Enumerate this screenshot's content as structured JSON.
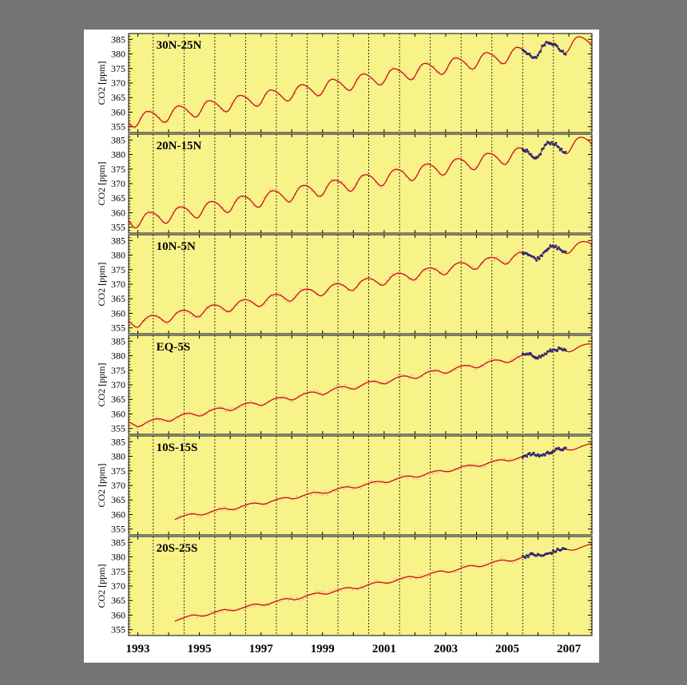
{
  "chart_data": {
    "type": "line",
    "x_range": [
      1992.7,
      2007.75
    ],
    "x_tick_labels": [
      "1993",
      "1995",
      "1997",
      "1999",
      "2001",
      "2003",
      "2005",
      "2007"
    ],
    "x_tick_values": [
      1993,
      1995,
      1997,
      1999,
      2001,
      2003,
      2005,
      2007
    ],
    "grid_x_values": [
      1993.5,
      1994.5,
      1995.5,
      1996.5,
      1997.5,
      1998.5,
      1999.5,
      2000.5,
      2001.5,
      2002.5,
      2003.5,
      2004.5,
      2005.5,
      2006.5
    ],
    "grid": "vertical dotted lines at mid-year",
    "ylabel": "CO2 [ppm]",
    "y_tick_labels": [
      "355",
      "360",
      "365",
      "370",
      "375",
      "380",
      "385"
    ],
    "y_tick_values": [
      355,
      360,
      365,
      370,
      375,
      380,
      385
    ],
    "ylim": [
      353,
      387
    ],
    "colors": {
      "panel_background": "#f8f388",
      "fit_line": "#cc1111",
      "observations": "#f4b0a0",
      "recent_observations": "#2b2b7a"
    },
    "panels": [
      {
        "label": "30N-25N",
        "start_year": 1992.7,
        "fit": {
          "trend_points": [
            [
              1992.7,
              357.2
            ],
            [
              1993.0,
              357.3
            ],
            [
              2007.7,
              384.2
            ]
          ],
          "seasonal_amplitude": 2.4,
          "phase": 0.1
        }
      },
      {
        "label": "20N-15N",
        "start_year": 1992.7,
        "fit": {
          "trend_points": [
            [
              1992.7,
              357.5
            ],
            [
              1993.0,
              357.1
            ],
            [
              2007.7,
              384.1
            ]
          ],
          "seasonal_amplitude": 2.4,
          "phase": 0.15
        }
      },
      {
        "label": "10N-5N",
        "start_year": 1992.7,
        "fit": {
          "trend_points": [
            [
              1992.7,
              357.0
            ],
            [
              1993.0,
              356.8
            ],
            [
              2007.7,
              383.5
            ]
          ],
          "seasonal_amplitude": 1.6,
          "phase": 0.2
        }
      },
      {
        "label": "EQ-5S",
        "start_year": 1992.7,
        "fit": {
          "trend_points": [
            [
              1992.7,
              356.6
            ],
            [
              1993.0,
              356.4
            ],
            [
              2007.7,
              383.4
            ]
          ],
          "seasonal_amplitude": 0.8,
          "phase": 0.3
        }
      },
      {
        "label": "10S-15S",
        "start_year": 1994.2,
        "fit": {
          "trend_points": [
            [
              1994.2,
              358.7
            ],
            [
              2007.7,
              383.8
            ]
          ],
          "seasonal_amplitude": 0.5,
          "phase": 0.4
        }
      },
      {
        "label": "20S-25S",
        "start_year": 1994.2,
        "fit": {
          "trend_points": [
            [
              1994.2,
              358.4
            ],
            [
              2007.7,
              383.9
            ]
          ],
          "seasonal_amplitude": 0.5,
          "phase": 0.45
        }
      }
    ],
    "recent_obs_range": [
      2005.5,
      2006.9
    ]
  }
}
